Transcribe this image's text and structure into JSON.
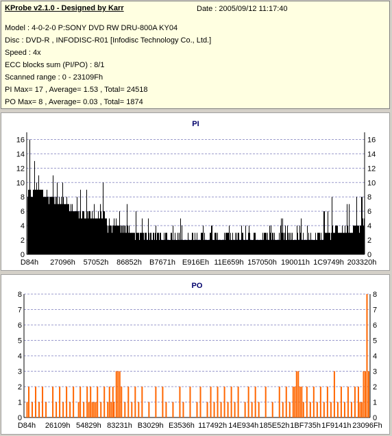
{
  "info": {
    "title": "KProbe v2.1.0 - Designed by Karr",
    "date": "Date : 2005/09/12 11:17:40",
    "model": "Model : 4-0-2-0 P:SONY    DVD RW DRU-800A  KY04",
    "disc": "Disc : DVD-R , INFODISC-R01 [Infodisc Technology Co., Ltd.]",
    "speed": "Speed : 4x",
    "ecc": "ECC blocks sum (PI/PO) : 8/1",
    "range": "Scanned range : 0 - 23109Fh",
    "pi_stats": "PI Max= 17 , Average= 1.53 , Total= 24518",
    "po_stats": "PO Max= 8 , Average= 0.03 , Total= 1874"
  },
  "colors": {
    "pi_bar": "#000000",
    "po_bar": "#ff6600",
    "grid": "#9999cc",
    "title": "#00006b"
  },
  "chart_data": [
    {
      "type": "bar",
      "title": "PI",
      "ylim": [
        0,
        17
      ],
      "yticks": [
        0,
        2,
        4,
        6,
        8,
        10,
        12,
        14,
        16
      ],
      "x_tick_labels": [
        "D84h",
        "27096h",
        "57052h",
        "86852h",
        "B7671h",
        "E916Eh",
        "11E659h",
        "157050h",
        "190011h",
        "1C9749h",
        "203320h"
      ],
      "grid": true,
      "profile": [
        {
          "x": 0.0,
          "base": 8,
          "peak": 17
        },
        {
          "x": 0.03,
          "base": 9,
          "peak": 17
        },
        {
          "x": 0.06,
          "base": 8,
          "peak": 15
        },
        {
          "x": 0.09,
          "base": 7,
          "peak": 11
        },
        {
          "x": 0.13,
          "base": 6,
          "peak": 10
        },
        {
          "x": 0.17,
          "base": 5,
          "peak": 9
        },
        {
          "x": 0.2,
          "base": 5,
          "peak": 10
        },
        {
          "x": 0.23,
          "base": 5,
          "peak": 11
        },
        {
          "x": 0.24,
          "base": 3,
          "peak": 6
        },
        {
          "x": 0.26,
          "base": 4,
          "peak": 12
        },
        {
          "x": 0.3,
          "base": 3,
          "peak": 6
        },
        {
          "x": 0.4,
          "base": 2,
          "peak": 5
        },
        {
          "x": 0.55,
          "base": 2,
          "peak": 5
        },
        {
          "x": 0.7,
          "base": 2,
          "peak": 5
        },
        {
          "x": 0.8,
          "base": 2,
          "peak": 5
        },
        {
          "x": 0.86,
          "base": 2,
          "peak": 6
        },
        {
          "x": 0.92,
          "base": 3,
          "peak": 10
        },
        {
          "x": 0.96,
          "base": 3,
          "peak": 8
        },
        {
          "x": 1.0,
          "base": 4,
          "peak": 12
        }
      ]
    },
    {
      "type": "bar",
      "title": "PO",
      "ylim": [
        0,
        8
      ],
      "yticks": [
        0,
        1,
        2,
        3,
        4,
        5,
        6,
        7,
        8
      ],
      "x_tick_labels": [
        "D84h",
        "26109h",
        "54829h",
        "83231h",
        "B3029h",
        "E3536h",
        "117492h",
        "14E934h",
        "185E52h",
        "1BF735h",
        "1F9141h",
        "23096Fh"
      ],
      "grid": true,
      "points": [
        {
          "x": 0.005,
          "v": 1
        },
        {
          "x": 0.01,
          "v": 2
        },
        {
          "x": 0.02,
          "v": 1
        },
        {
          "x": 0.03,
          "v": 2
        },
        {
          "x": 0.04,
          "v": 1
        },
        {
          "x": 0.05,
          "v": 2
        },
        {
          "x": 0.06,
          "v": 1
        },
        {
          "x": 0.08,
          "v": 2
        },
        {
          "x": 0.09,
          "v": 1
        },
        {
          "x": 0.1,
          "v": 2
        },
        {
          "x": 0.11,
          "v": 1
        },
        {
          "x": 0.12,
          "v": 2
        },
        {
          "x": 0.13,
          "v": 1
        },
        {
          "x": 0.14,
          "v": 2
        },
        {
          "x": 0.155,
          "v": 1
        },
        {
          "x": 0.16,
          "v": 2
        },
        {
          "x": 0.17,
          "v": 1
        },
        {
          "x": 0.18,
          "v": 2
        },
        {
          "x": 0.185,
          "v": 1
        },
        {
          "x": 0.19,
          "v": 2
        },
        {
          "x": 0.195,
          "v": 1
        },
        {
          "x": 0.2,
          "v": 1
        },
        {
          "x": 0.205,
          "v": 1
        },
        {
          "x": 0.21,
          "v": 2
        },
        {
          "x": 0.22,
          "v": 1
        },
        {
          "x": 0.23,
          "v": 2
        },
        {
          "x": 0.24,
          "v": 1
        },
        {
          "x": 0.245,
          "v": 2
        },
        {
          "x": 0.25,
          "v": 1
        },
        {
          "x": 0.255,
          "v": 2
        },
        {
          "x": 0.258,
          "v": 1
        },
        {
          "x": 0.265,
          "v": 3
        },
        {
          "x": 0.27,
          "v": 3
        },
        {
          "x": 0.275,
          "v": 3
        },
        {
          "x": 0.28,
          "v": 2
        },
        {
          "x": 0.29,
          "v": 1
        },
        {
          "x": 0.3,
          "v": 2
        },
        {
          "x": 0.31,
          "v": 1
        },
        {
          "x": 0.32,
          "v": 2
        },
        {
          "x": 0.33,
          "v": 1
        },
        {
          "x": 0.34,
          "v": 2
        },
        {
          "x": 0.36,
          "v": 1
        },
        {
          "x": 0.38,
          "v": 2
        },
        {
          "x": 0.4,
          "v": 2
        },
        {
          "x": 0.41,
          "v": 1
        },
        {
          "x": 0.43,
          "v": 1
        },
        {
          "x": 0.45,
          "v": 2
        },
        {
          "x": 0.46,
          "v": 1
        },
        {
          "x": 0.48,
          "v": 2
        },
        {
          "x": 0.5,
          "v": 1
        },
        {
          "x": 0.51,
          "v": 2
        },
        {
          "x": 0.53,
          "v": 1
        },
        {
          "x": 0.54,
          "v": 2
        },
        {
          "x": 0.55,
          "v": 1
        },
        {
          "x": 0.56,
          "v": 2
        },
        {
          "x": 0.57,
          "v": 1
        },
        {
          "x": 0.58,
          "v": 2
        },
        {
          "x": 0.59,
          "v": 1
        },
        {
          "x": 0.6,
          "v": 2
        },
        {
          "x": 0.61,
          "v": 1
        },
        {
          "x": 0.62,
          "v": 2
        },
        {
          "x": 0.64,
          "v": 1
        },
        {
          "x": 0.65,
          "v": 2
        },
        {
          "x": 0.66,
          "v": 1
        },
        {
          "x": 0.67,
          "v": 2
        },
        {
          "x": 0.68,
          "v": 1
        },
        {
          "x": 0.7,
          "v": 2
        },
        {
          "x": 0.72,
          "v": 1
        },
        {
          "x": 0.74,
          "v": 2
        },
        {
          "x": 0.75,
          "v": 1
        },
        {
          "x": 0.76,
          "v": 2
        },
        {
          "x": 0.77,
          "v": 1
        },
        {
          "x": 0.78,
          "v": 2
        },
        {
          "x": 0.785,
          "v": 2
        },
        {
          "x": 0.79,
          "v": 3
        },
        {
          "x": 0.795,
          "v": 3
        },
        {
          "x": 0.8,
          "v": 2
        },
        {
          "x": 0.805,
          "v": 2
        },
        {
          "x": 0.81,
          "v": 1
        },
        {
          "x": 0.82,
          "v": 2
        },
        {
          "x": 0.83,
          "v": 1
        },
        {
          "x": 0.84,
          "v": 2
        },
        {
          "x": 0.85,
          "v": 1
        },
        {
          "x": 0.86,
          "v": 2
        },
        {
          "x": 0.87,
          "v": 1
        },
        {
          "x": 0.88,
          "v": 2
        },
        {
          "x": 0.89,
          "v": 1
        },
        {
          "x": 0.9,
          "v": 3
        },
        {
          "x": 0.91,
          "v": 1
        },
        {
          "x": 0.92,
          "v": 2
        },
        {
          "x": 0.93,
          "v": 1
        },
        {
          "x": 0.94,
          "v": 2
        },
        {
          "x": 0.95,
          "v": 1
        },
        {
          "x": 0.96,
          "v": 2
        },
        {
          "x": 0.97,
          "v": 2
        },
        {
          "x": 0.975,
          "v": 1
        },
        {
          "x": 0.98,
          "v": 1
        },
        {
          "x": 0.985,
          "v": 3
        },
        {
          "x": 0.99,
          "v": 3
        },
        {
          "x": 0.995,
          "v": 8
        },
        {
          "x": 1.0,
          "v": 3
        }
      ]
    }
  ]
}
